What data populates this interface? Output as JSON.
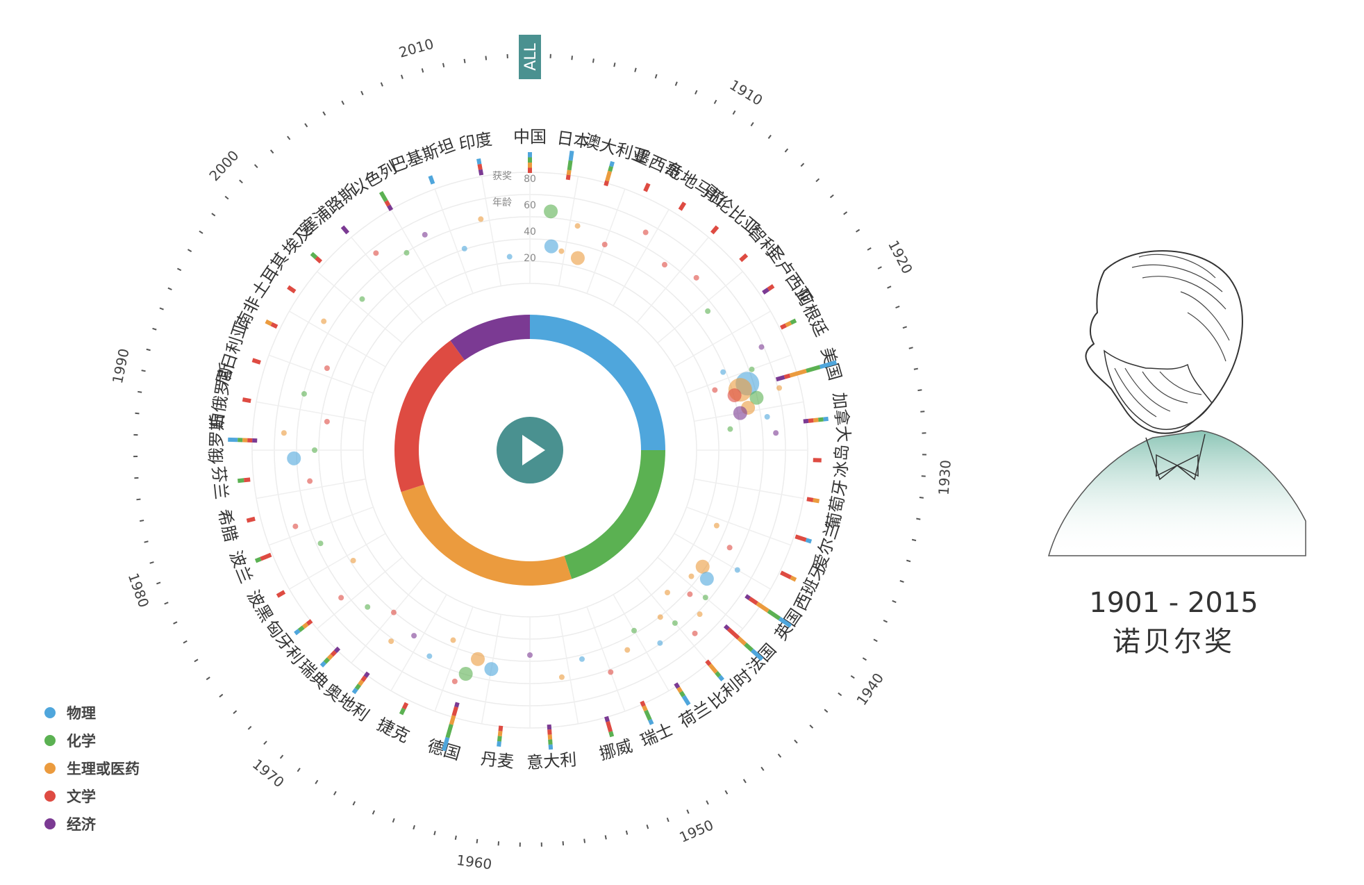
{
  "title": {
    "years": "1901 - 2015",
    "name": "诺贝尔奖"
  },
  "all_button": "ALL",
  "play_button_icon": "play-icon",
  "legend": [
    {
      "label": "物理",
      "color": "#4fa6dc"
    },
    {
      "label": "化学",
      "color": "#5bb152"
    },
    {
      "label": "生理或医药",
      "color": "#eb9b3e"
    },
    {
      "label": "文学",
      "color": "#de4b42"
    },
    {
      "label": "经济",
      "color": "#7b3a93"
    }
  ],
  "chart_data": {
    "type": "radial",
    "year_range": [
      1901,
      2015
    ],
    "year_labels": [
      "1910",
      "1920",
      "1930",
      "1940",
      "1950",
      "1960",
      "1970",
      "1980",
      "1990",
      "2000",
      "2010"
    ],
    "axis_labels": {
      "count": "获奖",
      "age": "年龄"
    },
    "age_ticks": [
      "80",
      "60",
      "40",
      "20"
    ],
    "category_share": [
      {
        "category": "物理",
        "value": 0.25
      },
      {
        "category": "化学",
        "value": 0.2
      },
      {
        "category": "生理或医药",
        "value": 0.25
      },
      {
        "category": "文学",
        "value": 0.2
      },
      {
        "category": "经济",
        "value": 0.1
      }
    ],
    "countries": [
      {
        "name": "中国",
        "angle": 0,
        "bar": [
          1,
          1,
          1,
          1,
          0
        ]
      },
      {
        "name": "日本",
        "angle": 8,
        "bar": [
          2,
          2,
          1,
          1,
          0
        ]
      },
      {
        "name": "澳大利亚",
        "angle": 16,
        "bar": [
          1,
          1,
          2,
          1,
          0
        ]
      },
      {
        "name": "墨西哥",
        "angle": 24,
        "bar": [
          0,
          0,
          0,
          1,
          0
        ]
      },
      {
        "name": "危地马拉",
        "angle": 32,
        "bar": [
          0,
          0,
          0,
          1,
          0
        ]
      },
      {
        "name": "哥伦比亚",
        "angle": 40,
        "bar": [
          0,
          0,
          0,
          1,
          0
        ]
      },
      {
        "name": "智利",
        "angle": 48,
        "bar": [
          0,
          0,
          0,
          1,
          0
        ]
      },
      {
        "name": "圣卢西亚",
        "angle": 56,
        "bar": [
          0,
          0,
          0,
          1,
          1
        ]
      },
      {
        "name": "阿根廷",
        "angle": 64,
        "bar": [
          0,
          1,
          1,
          1,
          0
        ]
      },
      {
        "name": "美国",
        "angle": 74,
        "bar": [
          6,
          5,
          6,
          2,
          3
        ]
      },
      {
        "name": "加拿大",
        "angle": 84,
        "bar": [
          1,
          1,
          1,
          1,
          1
        ]
      },
      {
        "name": "冰岛",
        "angle": 92,
        "bar": [
          0,
          0,
          0,
          1,
          0
        ]
      },
      {
        "name": "葡萄牙",
        "angle": 100,
        "bar": [
          0,
          0,
          1,
          1,
          0
        ]
      },
      {
        "name": "爱尔兰",
        "angle": 108,
        "bar": [
          1,
          0,
          0,
          2,
          0
        ]
      },
      {
        "name": "西班牙",
        "angle": 116,
        "bar": [
          0,
          0,
          1,
          2,
          0
        ]
      },
      {
        "name": "英国",
        "angle": 124,
        "bar": [
          3,
          3,
          3,
          2,
          1
        ]
      },
      {
        "name": "法国",
        "angle": 132,
        "bar": [
          3,
          2,
          2,
          3,
          1
        ]
      },
      {
        "name": "比利时",
        "angle": 140,
        "bar": [
          1,
          1,
          2,
          1,
          0
        ]
      },
      {
        "name": "荷兰",
        "angle": 148,
        "bar": [
          2,
          1,
          1,
          0,
          1
        ]
      },
      {
        "name": "瑞士",
        "angle": 156,
        "bar": [
          1,
          2,
          1,
          1,
          0
        ]
      },
      {
        "name": "挪威",
        "angle": 164,
        "bar": [
          0,
          1,
          0,
          2,
          1
        ]
      },
      {
        "name": "意大利",
        "angle": 176,
        "bar": [
          1,
          1,
          1,
          1,
          1
        ]
      },
      {
        "name": "丹麦",
        "angle": 186,
        "bar": [
          1,
          1,
          1,
          1,
          0
        ]
      },
      {
        "name": "德国",
        "angle": 196,
        "bar": [
          3,
          3,
          2,
          2,
          1
        ]
      },
      {
        "name": "捷克",
        "angle": 206,
        "bar": [
          0,
          1,
          0,
          1,
          0
        ]
      },
      {
        "name": "奥地利",
        "angle": 216,
        "bar": [
          1,
          1,
          1,
          1,
          1
        ]
      },
      {
        "name": "瑞典",
        "angle": 224,
        "bar": [
          1,
          1,
          1,
          1,
          1
        ]
      },
      {
        "name": "匈牙利",
        "angle": 232,
        "bar": [
          1,
          1,
          1,
          1,
          0
        ]
      },
      {
        "name": "波黑",
        "angle": 240,
        "bar": [
          0,
          0,
          0,
          1,
          0
        ]
      },
      {
        "name": "波兰",
        "angle": 248,
        "bar": [
          0,
          1,
          0,
          2,
          0
        ]
      },
      {
        "name": "希腊",
        "angle": 256,
        "bar": [
          0,
          0,
          0,
          1,
          0
        ]
      },
      {
        "name": "芬兰",
        "angle": 264,
        "bar": [
          0,
          1,
          0,
          1,
          0
        ]
      },
      {
        "name": "俄罗斯",
        "angle": 272,
        "bar": [
          2,
          1,
          1,
          1,
          1
        ]
      },
      {
        "name": "白俄罗斯",
        "angle": 280,
        "bar": [
          0,
          0,
          0,
          1,
          0
        ]
      },
      {
        "name": "尼日利亚",
        "angle": 288,
        "bar": [
          0,
          0,
          0,
          1,
          0
        ]
      },
      {
        "name": "南非",
        "angle": 296,
        "bar": [
          0,
          0,
          1,
          1,
          0
        ]
      },
      {
        "name": "土耳其",
        "angle": 304,
        "bar": [
          0,
          0,
          0,
          1,
          0
        ]
      },
      {
        "name": "埃及",
        "angle": 312,
        "bar": [
          0,
          1,
          0,
          1,
          0
        ]
      },
      {
        "name": "塞浦路斯",
        "angle": 320,
        "bar": [
          0,
          0,
          0,
          0,
          1
        ]
      },
      {
        "name": "以色列",
        "angle": 330,
        "bar": [
          0,
          2,
          0,
          1,
          1
        ]
      },
      {
        "name": "巴基斯坦",
        "angle": 340,
        "bar": [
          1,
          0,
          0,
          0,
          0
        ]
      },
      {
        "name": "印度",
        "angle": 350,
        "bar": [
          1,
          0,
          0,
          1,
          1
        ]
      }
    ],
    "laureates": [
      {
        "angle": 73,
        "age": 55,
        "category": "物理",
        "size": 3
      },
      {
        "angle": 74,
        "age": 50,
        "category": "生理或医药",
        "size": 3
      },
      {
        "angle": 75,
        "age": 46,
        "category": "文学",
        "size": 2
      },
      {
        "angle": 77,
        "age": 58,
        "category": "化学",
        "size": 2
      },
      {
        "angle": 79,
        "age": 52,
        "category": "生理或医药",
        "size": 2
      },
      {
        "angle": 80,
        "age": 47,
        "category": "经济",
        "size": 2
      },
      {
        "angle": 82,
        "age": 62,
        "category": "物理",
        "size": 1
      },
      {
        "angle": 70,
        "age": 60,
        "category": "化学",
        "size": 1
      },
      {
        "angle": 68,
        "age": 44,
        "category": "物理",
        "size": 1
      },
      {
        "angle": 84,
        "age": 40,
        "category": "化学",
        "size": 1
      },
      {
        "angle": 86,
        "age": 66,
        "category": "经济",
        "size": 1
      },
      {
        "angle": 76,
        "age": 72,
        "category": "生理或医药",
        "size": 1
      },
      {
        "angle": 66,
        "age": 70,
        "category": "经济",
        "size": 1
      },
      {
        "angle": 72,
        "age": 36,
        "category": "文学",
        "size": 1
      },
      {
        "angle": 124,
        "age": 44,
        "category": "生理或医药",
        "size": 2
      },
      {
        "angle": 126,
        "age": 50,
        "category": "物理",
        "size": 2
      },
      {
        "angle": 128,
        "age": 42,
        "category": "生理或医药",
        "size": 1
      },
      {
        "angle": 130,
        "age": 56,
        "category": "化学",
        "size": 1
      },
      {
        "angle": 132,
        "age": 48,
        "category": "文学",
        "size": 1
      },
      {
        "angle": 134,
        "age": 60,
        "category": "生理或医药",
        "size": 1
      },
      {
        "angle": 136,
        "age": 38,
        "category": "生理或医药",
        "size": 1
      },
      {
        "angle": 138,
        "age": 66,
        "category": "文学",
        "size": 1
      },
      {
        "angle": 140,
        "age": 54,
        "category": "化学",
        "size": 1
      },
      {
        "angle": 142,
        "age": 46,
        "category": "生理或医药",
        "size": 1
      },
      {
        "angle": 120,
        "age": 62,
        "category": "物理",
        "size": 1
      },
      {
        "angle": 116,
        "age": 52,
        "category": "文学",
        "size": 1
      },
      {
        "angle": 112,
        "age": 40,
        "category": "生理或医药",
        "size": 1
      },
      {
        "angle": 146,
        "age": 58,
        "category": "物理",
        "size": 1
      },
      {
        "angle": 150,
        "age": 44,
        "category": "化学",
        "size": 1
      },
      {
        "angle": 154,
        "age": 52,
        "category": "生理或医药",
        "size": 1
      },
      {
        "angle": 160,
        "age": 60,
        "category": "文学",
        "size": 1
      },
      {
        "angle": 166,
        "age": 48,
        "category": "物理",
        "size": 1
      },
      {
        "angle": 172,
        "age": 56,
        "category": "生理或医药",
        "size": 1
      },
      {
        "angle": 180,
        "age": 42,
        "category": "经济",
        "size": 1
      },
      {
        "angle": 190,
        "age": 52,
        "category": "物理",
        "size": 2
      },
      {
        "angle": 194,
        "age": 48,
        "category": "生理或医药",
        "size": 2
      },
      {
        "angle": 196,
        "age": 58,
        "category": "化学",
        "size": 2
      },
      {
        "angle": 198,
        "age": 64,
        "category": "文学",
        "size": 1
      },
      {
        "angle": 202,
        "age": 42,
        "category": "生理或医药",
        "size": 1
      },
      {
        "angle": 206,
        "age": 56,
        "category": "物理",
        "size": 1
      },
      {
        "angle": 212,
        "age": 50,
        "category": "经济",
        "size": 1
      },
      {
        "angle": 216,
        "age": 60,
        "category": "生理或医药",
        "size": 1
      },
      {
        "angle": 220,
        "age": 46,
        "category": "文学",
        "size": 1
      },
      {
        "angle": 226,
        "age": 54,
        "category": "化学",
        "size": 1
      },
      {
        "angle": 232,
        "age": 62,
        "category": "文学",
        "size": 1
      },
      {
        "angle": 238,
        "age": 44,
        "category": "生理或医药",
        "size": 1
      },
      {
        "angle": 246,
        "age": 56,
        "category": "化学",
        "size": 1
      },
      {
        "angle": 252,
        "age": 66,
        "category": "文学",
        "size": 1
      },
      {
        "angle": 262,
        "age": 52,
        "category": "文学",
        "size": 1
      },
      {
        "angle": 268,
        "age": 60,
        "category": "物理",
        "size": 2
      },
      {
        "angle": 270,
        "age": 48,
        "category": "化学",
        "size": 1
      },
      {
        "angle": 274,
        "age": 66,
        "category": "生理或医药",
        "size": 1
      },
      {
        "angle": 278,
        "age": 42,
        "category": "文学",
        "size": 1
      },
      {
        "angle": 284,
        "age": 58,
        "category": "化学",
        "size": 1
      },
      {
        "angle": 292,
        "age": 50,
        "category": "文学",
        "size": 1
      },
      {
        "angle": 302,
        "age": 64,
        "category": "生理或医药",
        "size": 1
      },
      {
        "angle": 312,
        "age": 54,
        "category": "化学",
        "size": 1
      },
      {
        "angle": 322,
        "age": 68,
        "category": "文学",
        "size": 1
      },
      {
        "angle": 328,
        "age": 58,
        "category": "化学",
        "size": 1
      },
      {
        "angle": 334,
        "age": 62,
        "category": "经济",
        "size": 1
      },
      {
        "angle": 342,
        "age": 46,
        "category": "物理",
        "size": 1
      },
      {
        "angle": 348,
        "age": 60,
        "category": "生理或医药",
        "size": 1
      },
      {
        "angle": 354,
        "age": 36,
        "category": "物理",
        "size": 1
      },
      {
        "angle": 5,
        "age": 62,
        "category": "化学",
        "size": 2
      },
      {
        "angle": 6,
        "age": 42,
        "category": "物理",
        "size": 2
      },
      {
        "angle": 9,
        "age": 40,
        "category": "生理或医药",
        "size": 1
      },
      {
        "angle": 12,
        "age": 56,
        "category": "生理或医药",
        "size": 1
      },
      {
        "angle": 14,
        "age": 38,
        "category": "生理或医药",
        "size": 2
      },
      {
        "angle": 20,
        "age": 50,
        "category": "文学",
        "size": 1
      },
      {
        "angle": 28,
        "age": 66,
        "category": "文学",
        "size": 1
      },
      {
        "angle": 36,
        "age": 56,
        "category": "文学",
        "size": 1
      },
      {
        "angle": 44,
        "age": 62,
        "category": "文学",
        "size": 1
      },
      {
        "angle": 52,
        "age": 54,
        "category": "化学",
        "size": 1
      }
    ]
  }
}
